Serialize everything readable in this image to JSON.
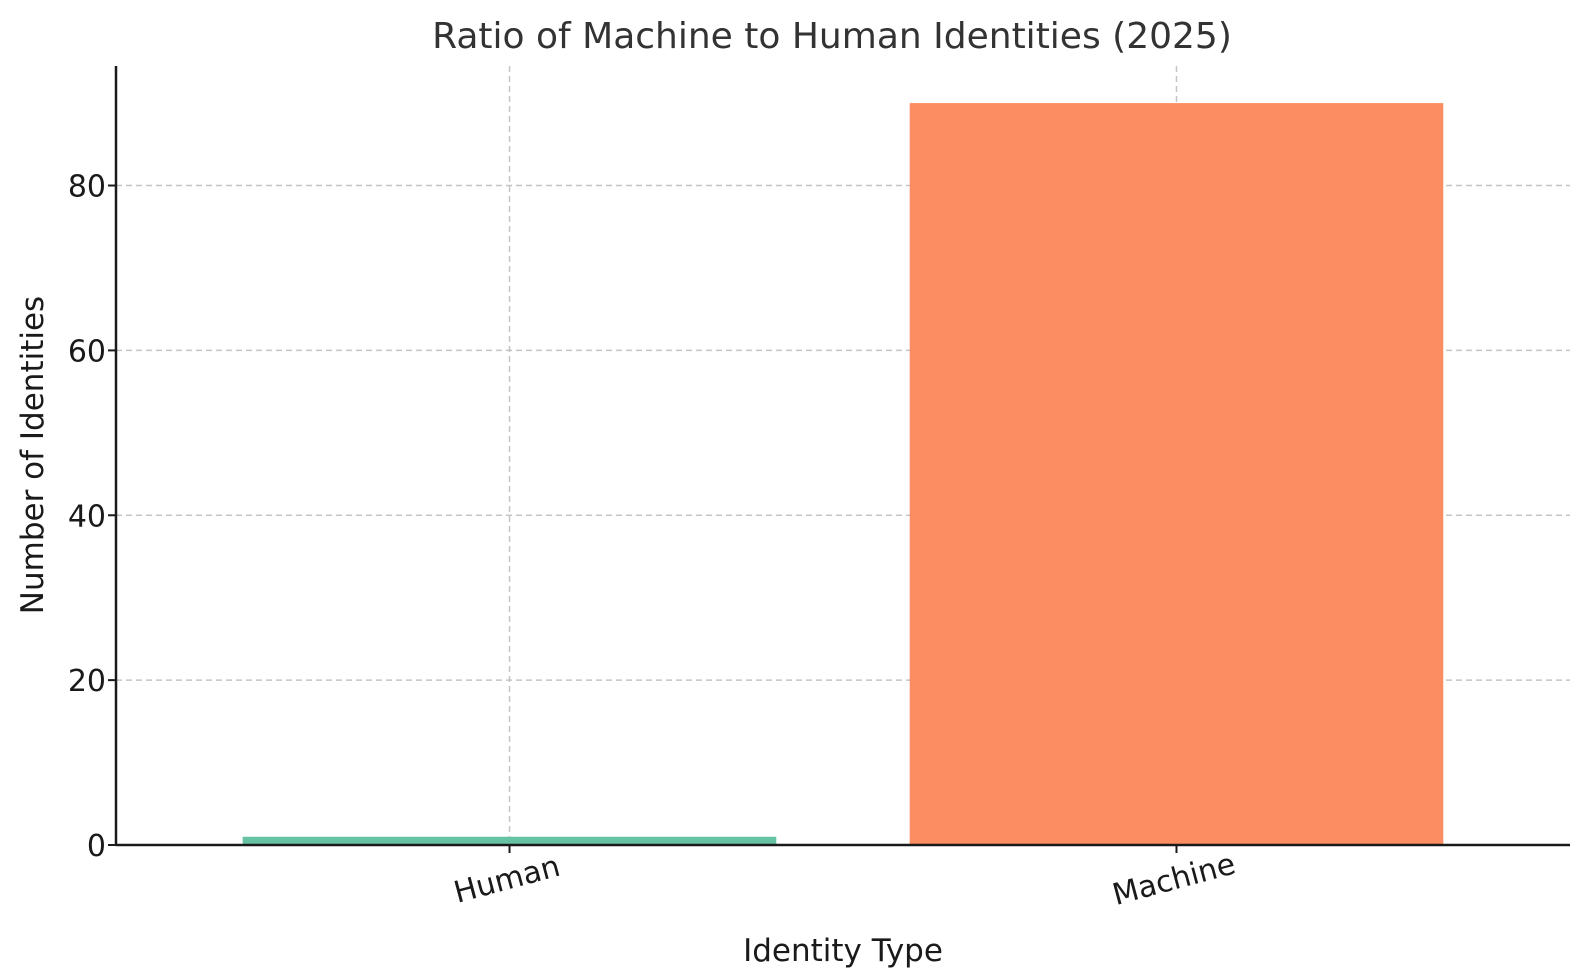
{
  "chart_data": {
    "type": "bar",
    "title": "Ratio of Machine to Human Identities (2025)",
    "xlabel": "Identity Type",
    "ylabel": "Number of Identities",
    "categories": [
      "Human",
      "Machine"
    ],
    "values": [
      1,
      90
    ],
    "colors": [
      "#66c2a5",
      "#fc8d62"
    ],
    "ylim": [
      0,
      94.5
    ],
    "yticks": [
      0,
      20,
      40,
      60,
      80
    ],
    "grid": true,
    "x_tick_rotation_deg": 15
  }
}
